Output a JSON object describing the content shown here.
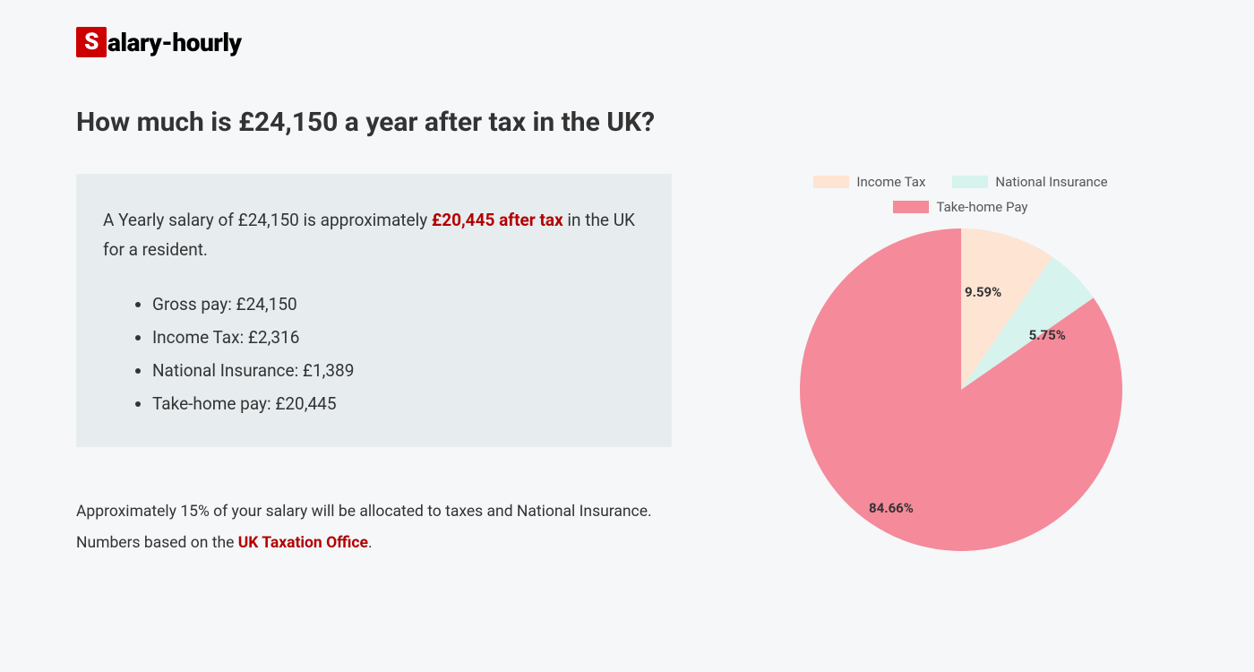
{
  "logo": {
    "box_letter": "S",
    "rest": "alary-hourly"
  },
  "heading": "How much is £24,150 a year after tax in the UK?",
  "summary": {
    "pre": "A Yearly salary of £24,150 is approximately ",
    "highlight": "£20,445 after tax",
    "post": " in the UK for a resident."
  },
  "bullets": [
    "Gross pay: £24,150",
    "Income Tax: £2,316",
    "National Insurance: £1,389",
    "Take-home pay: £20,445"
  ],
  "footer": {
    "line1": "Approximately 15% of your salary will be allocated to taxes and National Insurance.",
    "line2_pre": "Numbers based on the ",
    "line2_link": "UK Taxation Office",
    "line2_post": "."
  },
  "chart": {
    "type": "pie",
    "background_color": "#f5f7f9",
    "radius": 180,
    "slices": [
      {
        "label": "Income Tax",
        "value": 9.59,
        "color": "#fde4d3",
        "display": "9.59%"
      },
      {
        "label": "National Insurance",
        "value": 5.75,
        "color": "#d6f3ee",
        "display": "5.75%"
      },
      {
        "label": "Take-home Pay",
        "value": 84.66,
        "color": "#f48a9a",
        "display": "84.66%"
      }
    ],
    "legend_swatch_w": 40,
    "legend_swatch_h": 14,
    "label_fontsize": 15,
    "label_fontweight": 700,
    "label_color": "#333",
    "start_angle_deg": -90
  },
  "colors": {
    "page_bg": "#f5f7f9",
    "box_bg": "#e7edef",
    "text": "#333",
    "accent": "#b30000",
    "logo_box": "#c00"
  }
}
